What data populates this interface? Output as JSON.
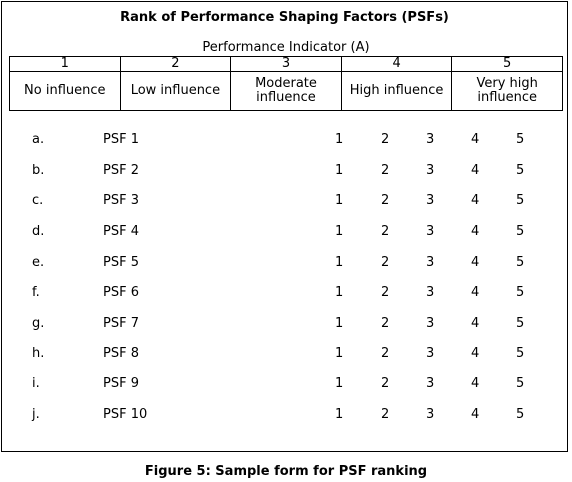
{
  "form": {
    "title": "Rank of Performance Shaping Factors (PSFs)",
    "indicator_heading": "Performance Indicator (A)",
    "scale": [
      {
        "number": "1",
        "label": "No influence"
      },
      {
        "number": "2",
        "label": "Low influence"
      },
      {
        "number": "3",
        "label": "Moderate influence"
      },
      {
        "number": "4",
        "label": "High influence"
      },
      {
        "number": "5",
        "label": "Very high influence"
      }
    ],
    "rows": [
      {
        "letter": "a.",
        "name": "PSF 1",
        "ratings": [
          "1",
          "2",
          "3",
          "4",
          "5"
        ]
      },
      {
        "letter": "b.",
        "name": "PSF 2",
        "ratings": [
          "1",
          "2",
          "3",
          "4",
          "5"
        ]
      },
      {
        "letter": "c.",
        "name": "PSF 3",
        "ratings": [
          "1",
          "2",
          "3",
          "4",
          "5"
        ]
      },
      {
        "letter": "d.",
        "name": "PSF 4",
        "ratings": [
          "1",
          "2",
          "3",
          "4",
          "5"
        ]
      },
      {
        "letter": "e.",
        "name": "PSF 5",
        "ratings": [
          "1",
          "2",
          "3",
          "4",
          "5"
        ]
      },
      {
        "letter": "f.",
        "name": "PSF 6",
        "ratings": [
          "1",
          "2",
          "3",
          "4",
          "5"
        ]
      },
      {
        "letter": "g.",
        "name": "PSF 7",
        "ratings": [
          "1",
          "2",
          "3",
          "4",
          "5"
        ]
      },
      {
        "letter": "h.",
        "name": "PSF 8",
        "ratings": [
          "1",
          "2",
          "3",
          "4",
          "5"
        ]
      },
      {
        "letter": "i.",
        "name": "PSF 9",
        "ratings": [
          "1",
          "2",
          "3",
          "4",
          "5"
        ]
      },
      {
        "letter": "j.",
        "name": "PSF 10",
        "ratings": [
          "1",
          "2",
          "3",
          "4",
          "5"
        ]
      }
    ]
  },
  "caption": "Figure 5: Sample form for PSF ranking"
}
